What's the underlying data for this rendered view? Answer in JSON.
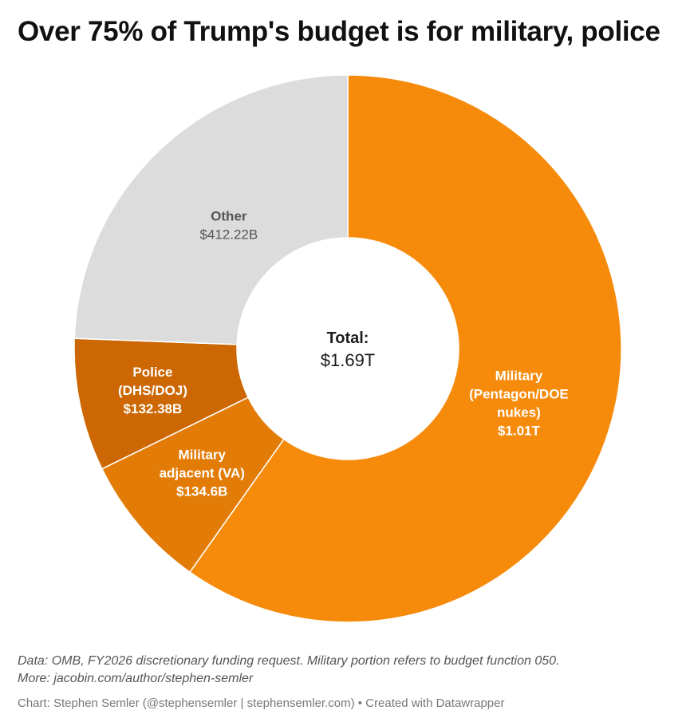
{
  "title": "Over 75% of Trump's budget is for military, police",
  "chart_data": {
    "type": "pie",
    "donut": true,
    "center_label": {
      "heading": "Total:",
      "value": "$1.69T"
    },
    "slices": [
      {
        "name": "Military (Pentagon/DOE nukes)",
        "label_lines": [
          "Military",
          "(Pentagon/DOE",
          "nukes)"
        ],
        "value": 1010,
        "value_label": "$1.01T",
        "color": "#f68b0b",
        "label_color": "#ffffff"
      },
      {
        "name": "Military adjacent (VA)",
        "label_lines": [
          "Military",
          "adjacent (VA)"
        ],
        "value": 134.6,
        "value_label": "$134.6B",
        "color": "#e27c07",
        "label_color": "#ffffff"
      },
      {
        "name": "Police (DHS/DOJ)",
        "label_lines": [
          "Police",
          "(DHS/DOJ)"
        ],
        "value": 132.38,
        "value_label": "$132.38B",
        "color": "#cc6703",
        "label_color": "#ffffff"
      },
      {
        "name": "Other",
        "label_lines": [
          "Other"
        ],
        "value": 412.22,
        "value_label": "$412.22B",
        "color": "#dcdcdc",
        "label_color": "#555555"
      }
    ],
    "value_unit": "billion USD"
  },
  "footer": {
    "note_line1": "Data: OMB, FY2026 discretionary funding request. Military portion refers to budget function 050.",
    "note_line2": "More: jacobin.com/author/stephen-semler",
    "credit": "Chart: Stephen Semler (@stephensemler | stephensemler.com) • Created with Datawrapper"
  }
}
